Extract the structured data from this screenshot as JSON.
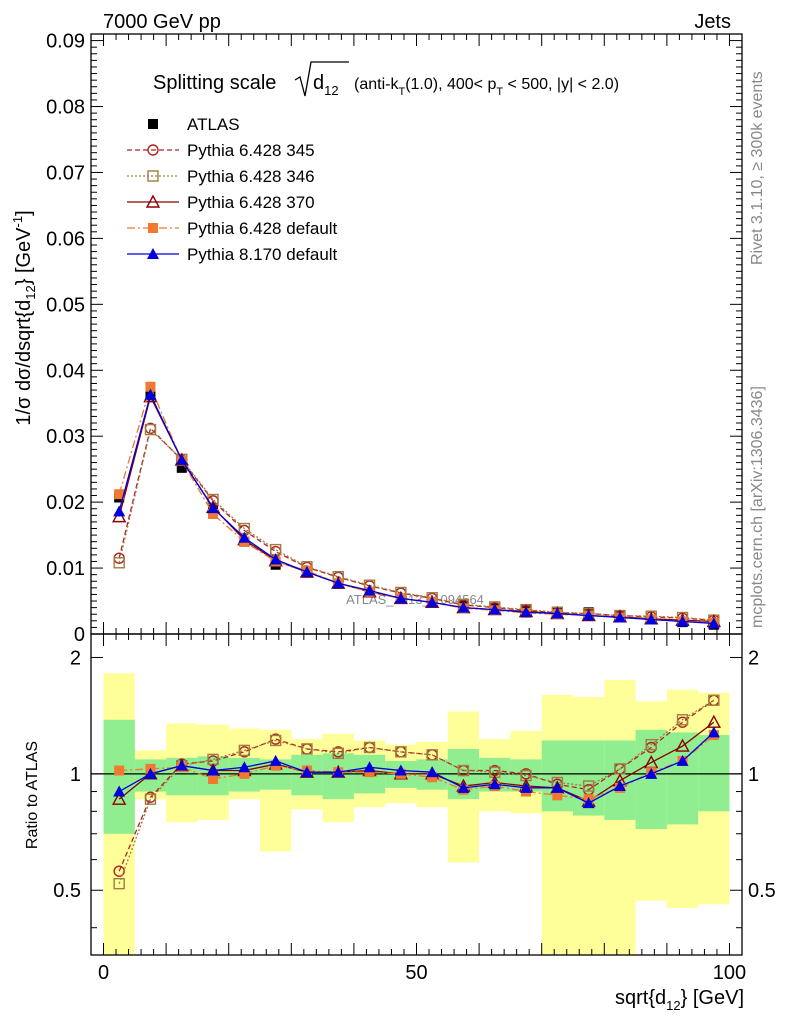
{
  "header": {
    "left": "7000 GeV pp",
    "right": "Jets",
    "rivet": "Rivet 3.1.10, ≥ 300k events",
    "mcplots": "mcplots.cern.ch [arXiv:1306.3436]",
    "watermark": "ATLAS_2013_I1094564"
  },
  "title": {
    "prefix": "Splitting scale",
    "sqrt_arg": "d",
    "sqrt_sub": "12",
    "cuts_a": "(anti-k",
    "cuts_a_sub": "T",
    "cuts_b": "(1.0), 400< p",
    "cuts_b_sub": "T",
    "cuts_c": " < 500, |y| < 2.0)"
  },
  "ylabel_main": {
    "a": "1/σ dσ/dsqrt{d",
    "sub": "12",
    "b": "} [GeV",
    "sup": "-1",
    "c": "]"
  },
  "ylabel_ratio": "Ratio to ATLAS",
  "xlabel": {
    "a": "sqrt{d",
    "sub": "12",
    "b": "} [GeV]"
  },
  "chart_data": {
    "type": "line",
    "x": [
      2.5,
      7.5,
      12.5,
      17.5,
      22.5,
      27.5,
      32.5,
      37.5,
      42.5,
      47.5,
      52.5,
      57.5,
      62.5,
      67.5,
      72.5,
      77.5,
      82.5,
      87.5,
      92.5,
      97.5
    ],
    "xlim": [
      -2,
      102
    ],
    "ylim": [
      0,
      0.091
    ],
    "ratio_ylim": [
      0.34,
      2.3
    ],
    "x_ticks": [
      "0",
      "50",
      "100"
    ],
    "y_ticks": [
      "0",
      "0.01",
      "0.02",
      "0.03",
      "0.04",
      "0.05",
      "0.06",
      "0.07",
      "0.08",
      "0.09"
    ],
    "ratio_ticks": [
      "0.5",
      "1",
      "2"
    ],
    "legend_position": "top-left",
    "series": [
      {
        "name": "ATLAS",
        "color": "#000000",
        "marker": "square-filled",
        "line": "none",
        "values": [
          0.0207,
          0.0362,
          0.0252,
          0.0188,
          0.014,
          0.0105,
          0.0093,
          0.0076,
          0.0063,
          0.0054,
          0.0048,
          0.0043,
          0.0039,
          0.0036,
          0.0034,
          0.0033,
          0.0027,
          0.0022,
          0.0018,
          0.0014
        ]
      },
      {
        "name": "Pythia 6.428 345",
        "color": "#b22222",
        "marker": "circle-open",
        "line": "dashed",
        "values": [
          0.0115,
          0.0312,
          0.0264,
          0.0202,
          0.0157,
          0.0125,
          0.0101,
          0.0086,
          0.0073,
          0.0062,
          0.0054,
          0.0044,
          0.004,
          0.0036,
          0.0032,
          0.0031,
          0.0028,
          0.0026,
          0.0024,
          0.0021
        ]
      },
      {
        "name": "Pythia 6.428 346",
        "color": "#a07c40",
        "marker": "square-open",
        "line": "dotted",
        "values": [
          0.0108,
          0.031,
          0.0265,
          0.0204,
          0.016,
          0.0128,
          0.0102,
          0.0087,
          0.0074,
          0.0063,
          0.0055,
          0.0045,
          0.0041,
          0.0037,
          0.0033,
          0.0031,
          0.0028,
          0.0027,
          0.0025,
          0.0021
        ]
      },
      {
        "name": "Pythia 6.428 370",
        "color": "#8b0000",
        "marker": "triangle-open",
        "line": "solid",
        "values": [
          0.0178,
          0.036,
          0.0264,
          0.0192,
          0.0143,
          0.0111,
          0.0094,
          0.0077,
          0.0064,
          0.0054,
          0.0048,
          0.004,
          0.0037,
          0.0034,
          0.0031,
          0.0028,
          0.0026,
          0.0023,
          0.0021,
          0.0019
        ]
      },
      {
        "name": "Pythia 6.428 default",
        "color": "#f07830",
        "marker": "square-filled",
        "line": "dashdot",
        "values": [
          0.0212,
          0.0375,
          0.0263,
          0.0182,
          0.014,
          0.011,
          0.0096,
          0.0077,
          0.0064,
          0.0054,
          0.0048,
          0.0039,
          0.0036,
          0.0032,
          0.003,
          0.0028,
          0.0025,
          0.0022,
          0.0019,
          0.0017
        ]
      },
      {
        "name": "Pythia 8.170 default",
        "color": "#0000dd",
        "marker": "triangle-filled",
        "line": "solid",
        "values": [
          0.0186,
          0.0363,
          0.0264,
          0.0191,
          0.0146,
          0.0113,
          0.0094,
          0.0077,
          0.0066,
          0.0054,
          0.0048,
          0.004,
          0.0037,
          0.0033,
          0.0031,
          0.0028,
          0.0025,
          0.0022,
          0.0019,
          0.0016
        ]
      }
    ],
    "ratio_series": [
      {
        "name": "Pythia 6.428 345",
        "values": [
          0.56,
          0.87,
          1.06,
          1.08,
          1.14,
          1.23,
          1.16,
          1.14,
          1.17,
          1.14,
          1.12,
          1.02,
          1.02,
          1.0,
          0.94,
          0.91,
          1.03,
          1.17,
          1.36,
          1.55
        ]
      },
      {
        "name": "Pythia 6.428 346",
        "values": [
          0.52,
          0.86,
          1.05,
          1.09,
          1.15,
          1.22,
          1.16,
          1.13,
          1.17,
          1.14,
          1.12,
          1.02,
          1.01,
          0.99,
          0.95,
          0.93,
          1.03,
          1.19,
          1.38,
          1.55
        ]
      },
      {
        "name": "Pythia 6.428 370",
        "values": [
          0.86,
          1.0,
          1.05,
          1.02,
          1.02,
          1.06,
          1.01,
          1.01,
          1.02,
          1.0,
          1.0,
          0.93,
          0.95,
          0.93,
          0.92,
          0.85,
          0.96,
          1.07,
          1.18,
          1.36
        ]
      },
      {
        "name": "Pythia 6.428 default",
        "values": [
          1.02,
          1.03,
          1.04,
          0.97,
          1.0,
          1.05,
          1.02,
          1.01,
          1.01,
          1.0,
          0.98,
          0.91,
          0.93,
          0.9,
          0.88,
          0.86,
          0.92,
          1.01,
          1.08,
          1.26
        ]
      },
      {
        "name": "Pythia 8.170 default",
        "values": [
          0.9,
          1.0,
          1.05,
          1.02,
          1.04,
          1.08,
          1.01,
          1.01,
          1.04,
          1.02,
          1.01,
          0.92,
          0.94,
          0.92,
          0.92,
          0.84,
          0.93,
          1.0,
          1.08,
          1.28
        ]
      }
    ],
    "band_inner": {
      "color": "#90ee90",
      "lo": [
        0.7,
        0.9,
        0.88,
        0.88,
        0.9,
        0.91,
        0.88,
        0.86,
        0.89,
        0.92,
        0.91,
        0.86,
        0.9,
        0.9,
        0.8,
        0.78,
        0.76,
        0.72,
        0.74,
        0.8
      ],
      "hi": [
        1.38,
        1.09,
        1.1,
        1.11,
        1.1,
        1.09,
        1.12,
        1.13,
        1.12,
        1.08,
        1.09,
        1.16,
        1.1,
        1.09,
        1.22,
        1.22,
        1.22,
        1.3,
        1.28,
        1.26
      ]
    },
    "band_outer": {
      "color": "#ffff99",
      "lo": [
        0.34,
        0.86,
        0.75,
        0.76,
        0.86,
        0.63,
        0.81,
        0.75,
        0.82,
        0.84,
        0.82,
        0.59,
        0.8,
        0.79,
        0.34,
        0.34,
        0.34,
        0.47,
        0.45,
        0.46
      ],
      "hi": [
        1.82,
        1.15,
        1.35,
        1.34,
        1.31,
        1.3,
        1.23,
        1.27,
        1.22,
        1.19,
        1.21,
        1.45,
        1.23,
        1.29,
        1.6,
        1.58,
        1.75,
        1.54,
        1.65,
        1.62
      ]
    }
  }
}
